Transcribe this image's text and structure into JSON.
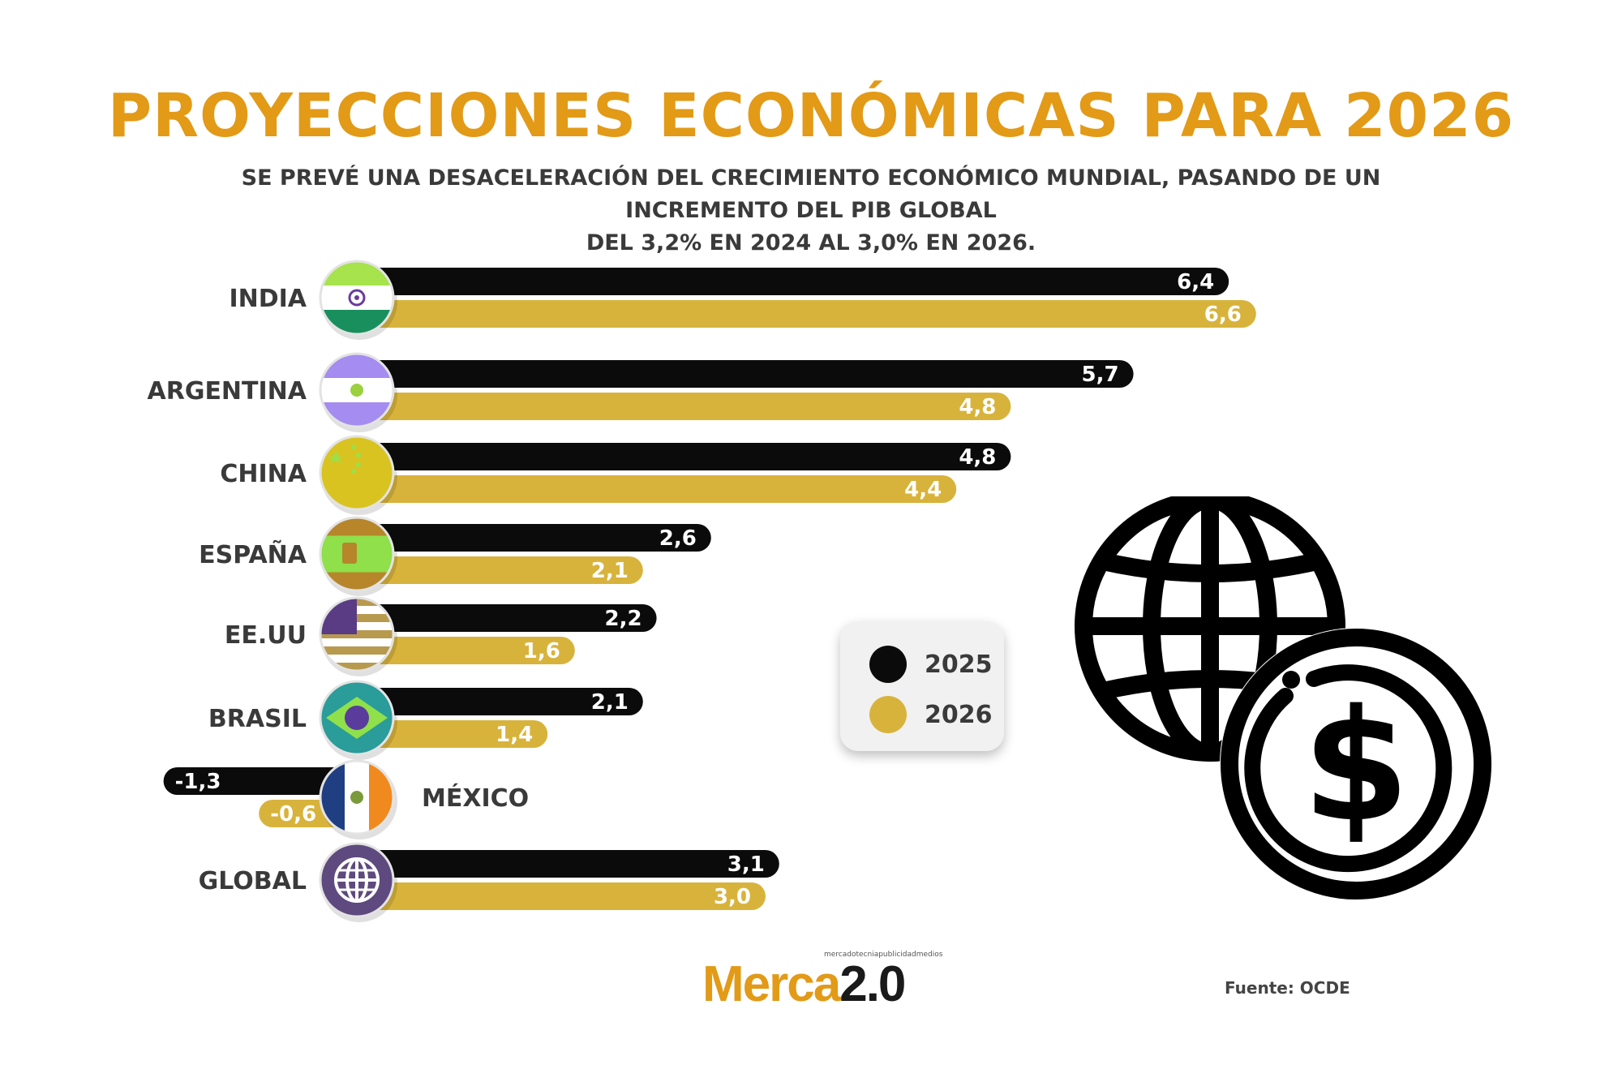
{
  "title": "PROYECCIONES ECONÓMICAS PARA 2026",
  "subtitle_line1": "SE PREVÉ UNA DESACELERACIÓN DEL CRECIMIENTO ECONÓMICO MUNDIAL, PASANDO DE UN INCREMENTO DEL PIB GLOBAL",
  "subtitle_line2": "DEL 3,2% EN 2024 AL 3,0% EN 2026.",
  "colors": {
    "accent": "#e29a17",
    "series_2025": "#0b0b0b",
    "series_2026": "#d8b33c"
  },
  "chart_data": {
    "type": "bar",
    "orientation": "horizontal",
    "categories": [
      "INDIA",
      "ARGENTINA",
      "CHINA",
      "ESPAÑA",
      "EE.UU",
      "BRASIL",
      "MÉXICO",
      "GLOBAL"
    ],
    "series": [
      {
        "name": "2025",
        "values": [
          6.4,
          5.7,
          4.8,
          2.6,
          2.2,
          2.1,
          -1.3,
          3.1
        ],
        "labels": [
          "6,4",
          "5,7",
          "4,8",
          "2,6",
          "2,2",
          "2,1",
          "-1,3",
          "3,1"
        ]
      },
      {
        "name": "2026",
        "values": [
          6.6,
          4.8,
          4.4,
          2.1,
          1.6,
          1.4,
          -0.6,
          3.0
        ],
        "labels": [
          "6,6",
          "4,8",
          "4,4",
          "2,1",
          "1,6",
          "1,4",
          "-0,6",
          "3,0"
        ]
      }
    ],
    "flags": [
      "india-flag-icon",
      "argentina-flag-icon",
      "china-flag-icon",
      "spain-flag-icon",
      "usa-flag-icon",
      "brazil-flag-icon",
      "mexico-flag-icon",
      "globe-icon"
    ],
    "legend_position": "right",
    "grid": false
  },
  "legend": {
    "label_2025": "2025",
    "label_2026": "2026"
  },
  "logo": {
    "tagline": "mercadotecniapublicidadmedios",
    "name_part1": "Merca",
    "name_part2": "2.0"
  },
  "source": "Fuente: OCDE",
  "illustration": "globe-dollar-icon"
}
